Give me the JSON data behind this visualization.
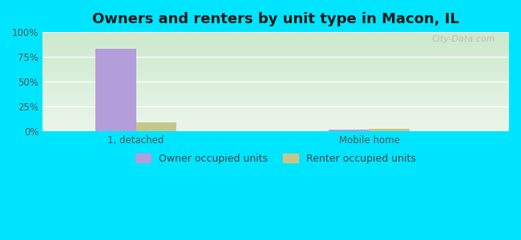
{
  "title": "Owners and renters by unit type in Macon, IL",
  "categories": [
    "1, detached",
    "Mobile home"
  ],
  "owner_values": [
    83,
    2
  ],
  "renter_values": [
    9,
    3
  ],
  "owner_color": "#b39ddb",
  "renter_color": "#c5c68a",
  "background_color": "#00e5ff",
  "plot_bg_top": "#cce8cc",
  "plot_bg_bottom": "#eaf5ea",
  "yticks": [
    0,
    25,
    50,
    75,
    100
  ],
  "title_fontsize": 13,
  "tick_fontsize": 8.5,
  "legend_fontsize": 9,
  "bar_width": 0.35,
  "group_positions": [
    1.0,
    3.0
  ],
  "xlim": [
    0.2,
    4.2
  ],
  "ylim": [
    0,
    100
  ],
  "watermark": "City-Data.com",
  "legend_labels": [
    "Owner occupied units",
    "Renter occupied units"
  ]
}
